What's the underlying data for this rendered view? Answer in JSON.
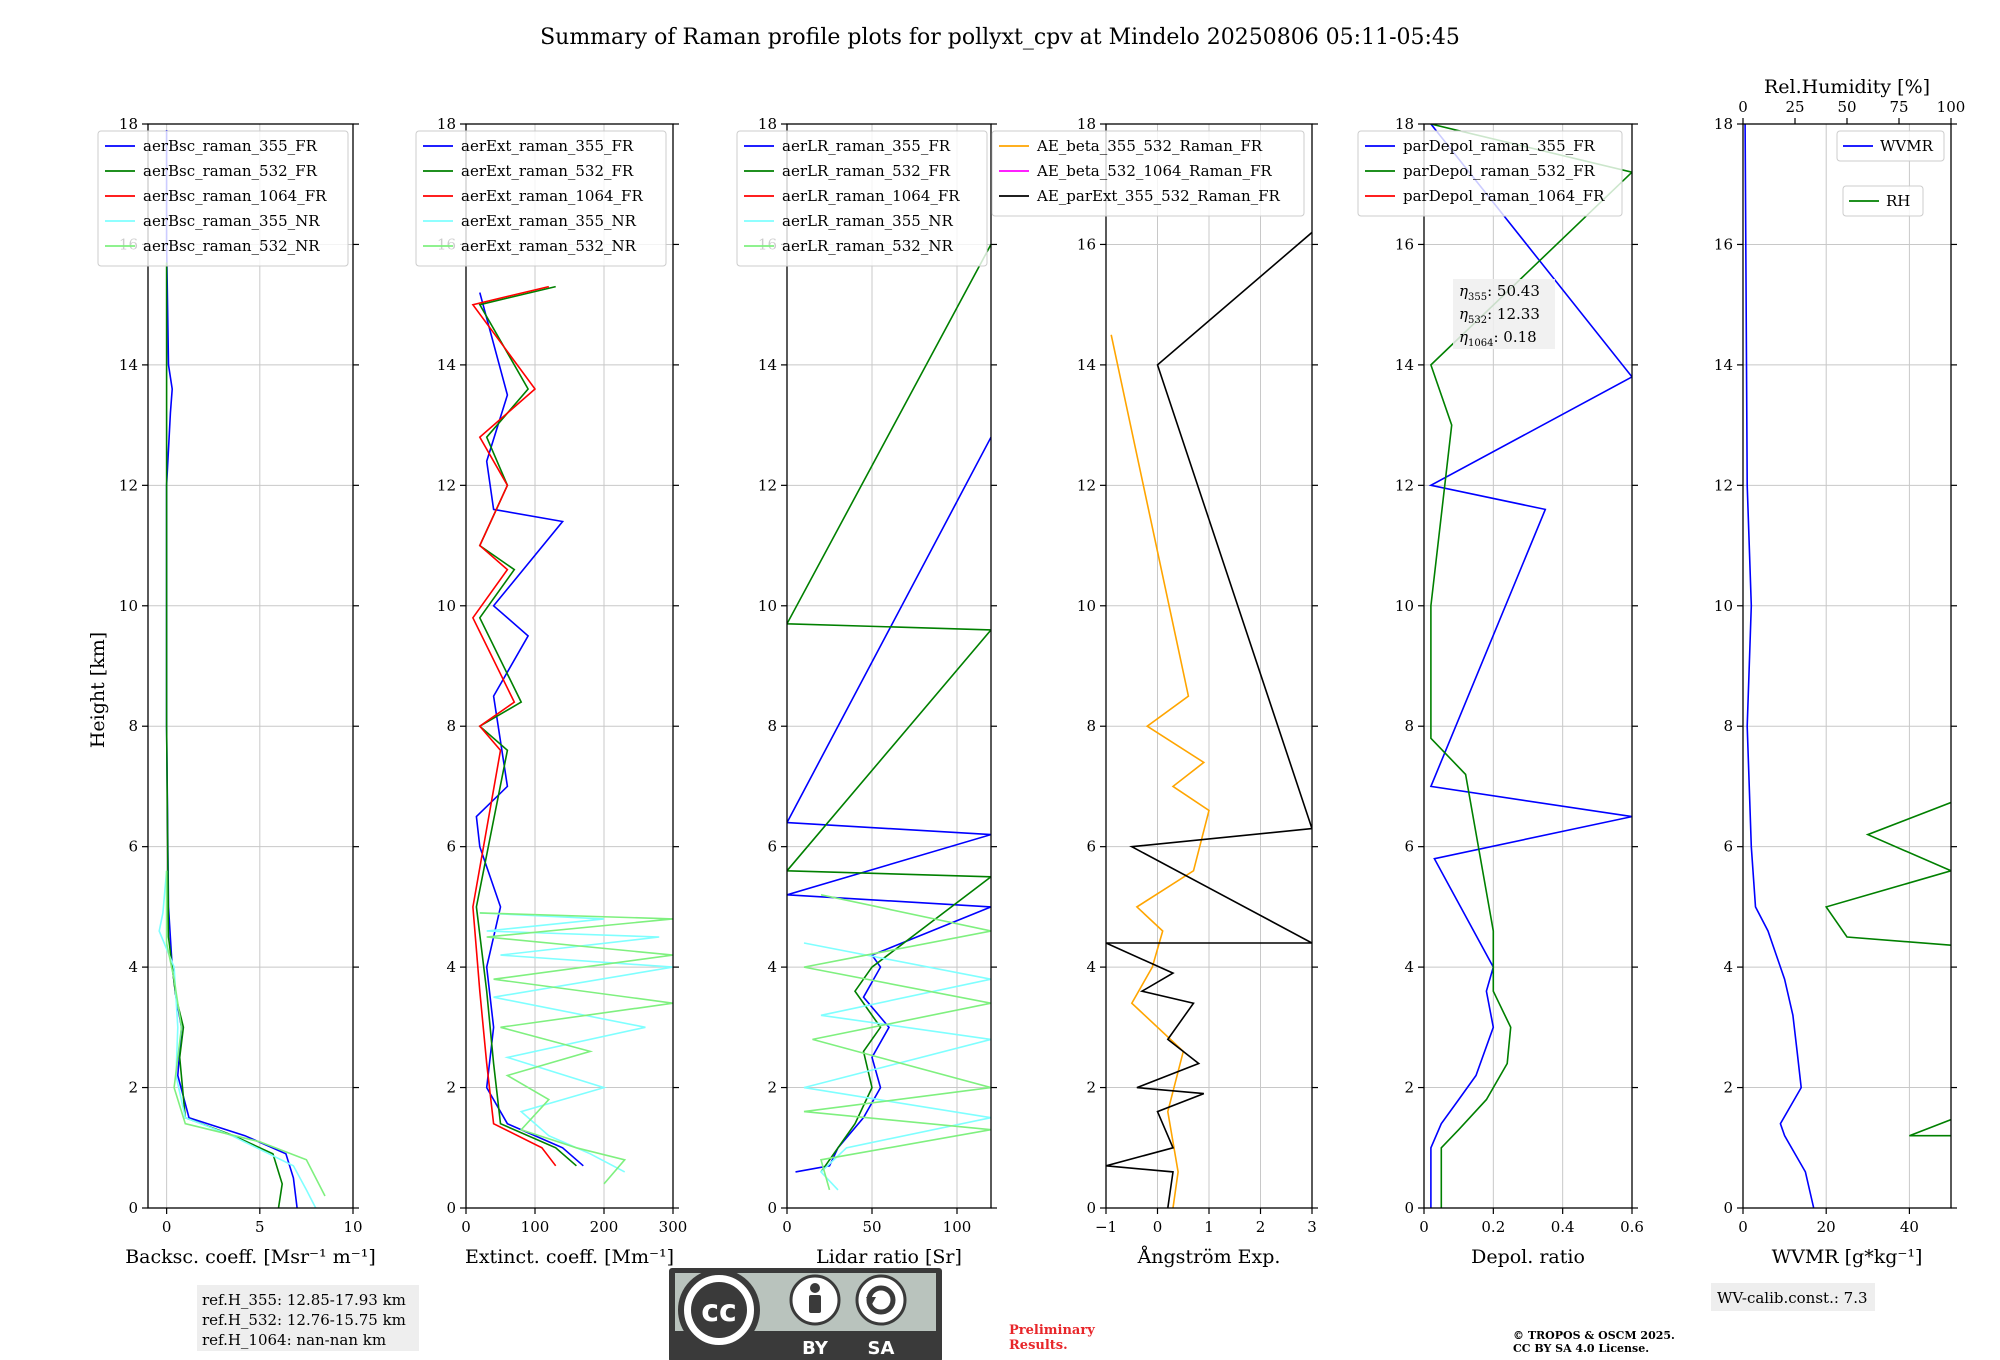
{
  "figure": {
    "title": "Summary of Raman profile plots for pollyxt_cpv at Mindelo 20250806 05:11-05:45",
    "ylabel": "Height [km]",
    "ref_heights": [
      "ref.H_355: 12.85-17.93 km",
      "ref.H_532: 12.76-15.75 km",
      "ref.H_1064: nan-nan km"
    ],
    "wv_calib": "WV-calib.const.: 7.3",
    "preliminary": [
      "Preliminary",
      "Results."
    ],
    "copyright": [
      "© TROPOS & OSCM 2025.",
      "CC BY SA 4.0 License."
    ],
    "license_badge": {
      "cc": "cc",
      "by": "BY",
      "sa": "SA"
    },
    "colors": {
      "blue": "#0000ff",
      "green": "#008000",
      "red": "#ff0000",
      "cyan": "#7fffff",
      "lightgreen": "#7ff07f",
      "orange": "#ffa500",
      "magenta": "#ff00ff",
      "black": "#000000",
      "eta_red": "#e8262a"
    }
  },
  "chart_data": [
    {
      "type": "line",
      "name": "backscatter",
      "xlabel": "Backsc. coeff. [Msr⁻¹ m⁻¹]",
      "ylabel": "Height [km]",
      "xlim": [
        -1,
        10
      ],
      "ylim": [
        0,
        18
      ],
      "xticks": [
        0,
        5,
        10
      ],
      "yticks": [
        0,
        2,
        4,
        6,
        8,
        10,
        12,
        14,
        16,
        18
      ],
      "grid": true,
      "legend_position": "top",
      "series": [
        {
          "name": "aerBsc_raman_355_FR",
          "color": "#0000ff",
          "x": [
            7,
            6.8,
            6.4,
            4.2,
            1.2,
            0.6,
            0.8,
            0.5,
            0.3,
            0.1,
            0.0,
            0.0,
            0.2,
            0.3,
            0.1,
            0.0,
            0.0
          ],
          "y": [
            0.0,
            0.5,
            0.9,
            1.2,
            1.5,
            2.2,
            3.0,
            3.5,
            4.0,
            5.0,
            8.0,
            12.0,
            13.2,
            13.6,
            14.0,
            16.0,
            17.9
          ]
        },
        {
          "name": "aerBsc_raman_532_FR",
          "color": "#008000",
          "x": [
            6.0,
            6.2,
            5.7,
            3.6,
            1.0,
            0.7,
            0.9,
            0.5,
            0.1,
            0.0,
            0.0,
            0.0
          ],
          "y": [
            0.0,
            0.4,
            0.9,
            1.2,
            1.5,
            2.5,
            3.0,
            3.5,
            4.5,
            8.0,
            12.0,
            15.7
          ]
        },
        {
          "name": "aerBsc_raman_1064_FR",
          "color": "#ff0000",
          "x": [],
          "y": []
        },
        {
          "name": "aerBsc_raman_355_NR",
          "color": "#7fffff",
          "x": [
            8.0,
            7.5,
            6.8,
            3.5,
            1.0,
            0.5,
            0.6,
            0.4,
            -0.4,
            -0.2,
            0.0
          ],
          "y": [
            0.0,
            0.3,
            0.7,
            1.2,
            1.5,
            2.2,
            3.0,
            4.0,
            4.6,
            4.9,
            5.6
          ]
        },
        {
          "name": "aerBsc_raman_532_NR",
          "color": "#7ff07f",
          "x": [
            8.5,
            7.5,
            5.0,
            1.0,
            0.4,
            0.8,
            0.4,
            0.0,
            0.0
          ],
          "y": [
            0.2,
            0.8,
            1.1,
            1.4,
            2.0,
            3.0,
            3.8,
            4.4,
            5.6
          ]
        }
      ]
    },
    {
      "type": "line",
      "name": "extinction",
      "xlabel": "Extinct. coeff. [Mm⁻¹]",
      "xlim": [
        0,
        300
      ],
      "ylim": [
        0,
        18
      ],
      "xticks": [
        0,
        100,
        200,
        300
      ],
      "grid": true,
      "legend_position": "top",
      "series": [
        {
          "name": "aerExt_raman_355_FR",
          "color": "#0000ff",
          "x": [
            170,
            140,
            60,
            30,
            40,
            30,
            50,
            20,
            15,
            60,
            40,
            90,
            40,
            140,
            40,
            30,
            60,
            20
          ],
          "y": [
            0.7,
            1.0,
            1.4,
            2.0,
            3.0,
            4.0,
            5.0,
            6.0,
            6.5,
            7.0,
            8.5,
            9.5,
            10.0,
            11.4,
            11.6,
            12.4,
            13.5,
            15.2
          ]
        },
        {
          "name": "aerExt_raman_532_FR",
          "color": "#008000",
          "x": [
            160,
            130,
            50,
            40,
            30,
            15,
            60,
            20,
            80,
            20,
            70,
            20,
            60,
            30,
            90,
            20,
            130
          ],
          "y": [
            0.7,
            1.0,
            1.4,
            2.4,
            3.6,
            5.0,
            7.6,
            8.0,
            8.4,
            9.8,
            10.6,
            11.0,
            12.0,
            12.8,
            13.6,
            15.0,
            15.3
          ]
        },
        {
          "name": "aerExt_raman_1064_FR",
          "color": "#ff0000",
          "x": [
            130,
            110,
            40,
            30,
            20,
            10,
            50,
            20,
            70,
            10,
            60,
            20,
            60,
            20,
            100,
            10,
            120
          ],
          "y": [
            0.7,
            1.0,
            1.4,
            2.4,
            3.6,
            5.0,
            7.6,
            8.0,
            8.4,
            9.8,
            10.6,
            11.0,
            12.0,
            12.8,
            13.6,
            15.0,
            15.3
          ]
        },
        {
          "name": "aerExt_raman_355_NR",
          "color": "#7fffff",
          "x": [
            230,
            180,
            120,
            80,
            200,
            60,
            260,
            40,
            300,
            50,
            280,
            30,
            200,
            20
          ],
          "y": [
            0.6,
            0.9,
            1.2,
            1.6,
            2.0,
            2.5,
            3.0,
            3.5,
            4.0,
            4.2,
            4.5,
            4.6,
            4.8,
            4.9
          ]
        },
        {
          "name": "aerExt_raman_532_NR",
          "color": "#7ff07f",
          "x": [
            200,
            230,
            160,
            80,
            120,
            60,
            180,
            50,
            300,
            40,
            300,
            30,
            300,
            20
          ],
          "y": [
            0.4,
            0.8,
            1.0,
            1.3,
            1.8,
            2.2,
            2.6,
            3.0,
            3.4,
            3.8,
            4.2,
            4.5,
            4.8,
            4.9
          ]
        }
      ]
    },
    {
      "type": "line",
      "name": "lidar_ratio",
      "xlabel": "Lidar ratio [Sr]",
      "xlim": [
        0,
        120
      ],
      "ylim": [
        0,
        18
      ],
      "xticks": [
        0,
        50,
        100
      ],
      "grid": true,
      "legend_position": "top",
      "series": [
        {
          "name": "aerLR_raman_355_FR",
          "color": "#0000ff",
          "x": [
            5,
            25,
            30,
            45,
            55,
            50,
            60,
            45,
            55,
            50,
            120,
            0,
            120,
            0,
            120
          ],
          "y": [
            0.6,
            0.7,
            1.0,
            1.5,
            2.0,
            2.5,
            3.0,
            3.5,
            4.0,
            4.2,
            5.0,
            5.2,
            6.2,
            6.4,
            12.8
          ]
        },
        {
          "name": "aerLR_raman_532_FR",
          "color": "#008000",
          "x": [
            20,
            30,
            40,
            50,
            45,
            55,
            40,
            50,
            120,
            0,
            120,
            0,
            120
          ],
          "y": [
            0.6,
            1.0,
            1.4,
            2.0,
            2.6,
            3.0,
            3.6,
            4.0,
            5.5,
            5.6,
            9.6,
            9.7,
            16.0
          ]
        },
        {
          "name": "aerLR_raman_1064_FR",
          "color": "#ff0000",
          "x": [],
          "y": []
        },
        {
          "name": "aerLR_raman_355_NR",
          "color": "#7fffff",
          "x": [
            30,
            20,
            35,
            120,
            10,
            120,
            20,
            120,
            10
          ],
          "y": [
            0.3,
            0.6,
            1.0,
            1.5,
            2.0,
            2.8,
            3.2,
            3.8,
            4.4
          ]
        },
        {
          "name": "aerLR_raman_532_NR",
          "color": "#7ff07f",
          "x": [
            25,
            20,
            120,
            10,
            120,
            15,
            120,
            10,
            120,
            20
          ],
          "y": [
            0.3,
            0.8,
            1.3,
            1.6,
            2.0,
            2.8,
            3.4,
            4.0,
            4.6,
            5.2
          ]
        }
      ]
    },
    {
      "type": "line",
      "name": "angstrom",
      "xlabel": "Ångström Exp.",
      "xlim": [
        -1,
        3
      ],
      "ylim": [
        0,
        18
      ],
      "xticks": [
        -1,
        0,
        1,
        2,
        3
      ],
      "grid": true,
      "legend_position": "top",
      "series": [
        {
          "name": "AE_beta_355_532_Raman_FR",
          "color": "#ffa500",
          "x": [
            0.3,
            0.4,
            0.2,
            0.5,
            -0.5,
            -0.1,
            0.1,
            -0.4,
            0.7,
            1.0,
            0.3,
            0.9,
            -0.2,
            0.6,
            -0.9
          ],
          "y": [
            0.0,
            0.6,
            1.6,
            2.6,
            3.4,
            4.0,
            4.6,
            5.0,
            5.6,
            6.6,
            7.0,
            7.4,
            8.0,
            8.5,
            14.5
          ]
        },
        {
          "name": "AE_beta_532_1064_Raman_FR",
          "color": "#ff00ff",
          "x": [],
          "y": []
        },
        {
          "name": "AE_parExt_355_532_Raman_FR",
          "color": "#000000",
          "x": [
            0.2,
            0.3,
            -1.0,
            0.3,
            0.0,
            0.9,
            -0.4,
            0.8,
            0.2,
            0.7,
            -0.3,
            0.3,
            -1.0,
            3.0,
            -0.5,
            3.0,
            0.0,
            3.0
          ],
          "y": [
            0.0,
            0.6,
            0.7,
            1.0,
            1.6,
            1.9,
            2.0,
            2.4,
            2.8,
            3.4,
            3.6,
            3.9,
            4.4,
            4.4,
            6.0,
            6.3,
            14.0,
            16.2
          ]
        }
      ]
    },
    {
      "type": "line",
      "name": "depolarization",
      "xlabel": "Depol. ratio",
      "xlim": [
        0,
        0.6
      ],
      "ylim": [
        0,
        18
      ],
      "xticks": [
        0,
        0.2,
        0.4,
        0.6
      ],
      "grid": true,
      "legend_position": "top",
      "annotation": {
        "eta355": ": 50.43",
        "eta532": ": 12.33",
        "eta1064": ": 0.18"
      },
      "series": [
        {
          "name": "parDepol_raman_355_FR",
          "color": "#0000ff",
          "x": [
            0.02,
            0.02,
            0.05,
            0.1,
            0.15,
            0.2,
            0.18,
            0.2,
            0.03,
            0.6,
            0.02,
            0.35,
            0.02,
            0.6,
            0.02
          ],
          "y": [
            0.0,
            1.0,
            1.4,
            1.8,
            2.2,
            3.0,
            3.6,
            4.0,
            5.8,
            6.5,
            7.0,
            11.6,
            12.0,
            13.8,
            18.0
          ]
        },
        {
          "name": "parDepol_raman_532_FR",
          "color": "#008000",
          "x": [
            0.05,
            0.05,
            0.1,
            0.18,
            0.24,
            0.25,
            0.2,
            0.2,
            0.12,
            0.02,
            0.02,
            0.08,
            0.02,
            0.6,
            0.02
          ],
          "y": [
            0.0,
            1.0,
            1.3,
            1.8,
            2.4,
            3.0,
            3.6,
            4.6,
            7.2,
            7.8,
            10.0,
            13.0,
            14.0,
            17.2,
            18.0
          ]
        },
        {
          "name": "parDepol_raman_1064_FR",
          "color": "#ff0000",
          "x": [],
          "y": []
        }
      ]
    },
    {
      "type": "line",
      "name": "water_vapor",
      "xlabel": "WVMR [g*kg⁻¹]",
      "xlim": [
        0,
        50
      ],
      "ylim": [
        0,
        18
      ],
      "xticks": [
        0,
        20,
        40
      ],
      "top_axis": {
        "label": "Rel.Humidity [%]",
        "xlim": [
          0,
          100
        ],
        "xticks": [
          0,
          25,
          50,
          75,
          100
        ]
      },
      "grid": true,
      "legend_position": "top-right",
      "series": [
        {
          "name": "WVMR",
          "color": "#0000ff",
          "x": [
            17,
            15,
            10,
            9,
            14,
            13,
            12,
            10,
            8,
            6,
            3,
            2,
            1,
            2,
            1,
            0.5
          ],
          "y": [
            0.0,
            0.6,
            1.2,
            1.4,
            2.0,
            2.6,
            3.2,
            3.8,
            4.2,
            4.6,
            5.0,
            6.0,
            8.0,
            10.0,
            12.0,
            18.0
          ]
        },
        {
          "name": "RH",
          "color": "#008000",
          "x": [
            86,
            90,
            75,
            70,
            40,
            70,
            68,
            75,
            70,
            80,
            25,
            20,
            50,
            30,
            60,
            100,
            50,
            100,
            60,
            100,
            70
          ],
          "y": [
            0.0,
            0.8,
            1.0,
            1.2,
            1.2,
            2.0,
            3.0,
            3.6,
            4.0,
            4.2,
            4.5,
            5.0,
            5.6,
            6.2,
            7.0,
            7.4,
            8.0,
            9.0,
            9.6,
            10.5,
            11.0
          ]
        }
      ]
    }
  ]
}
